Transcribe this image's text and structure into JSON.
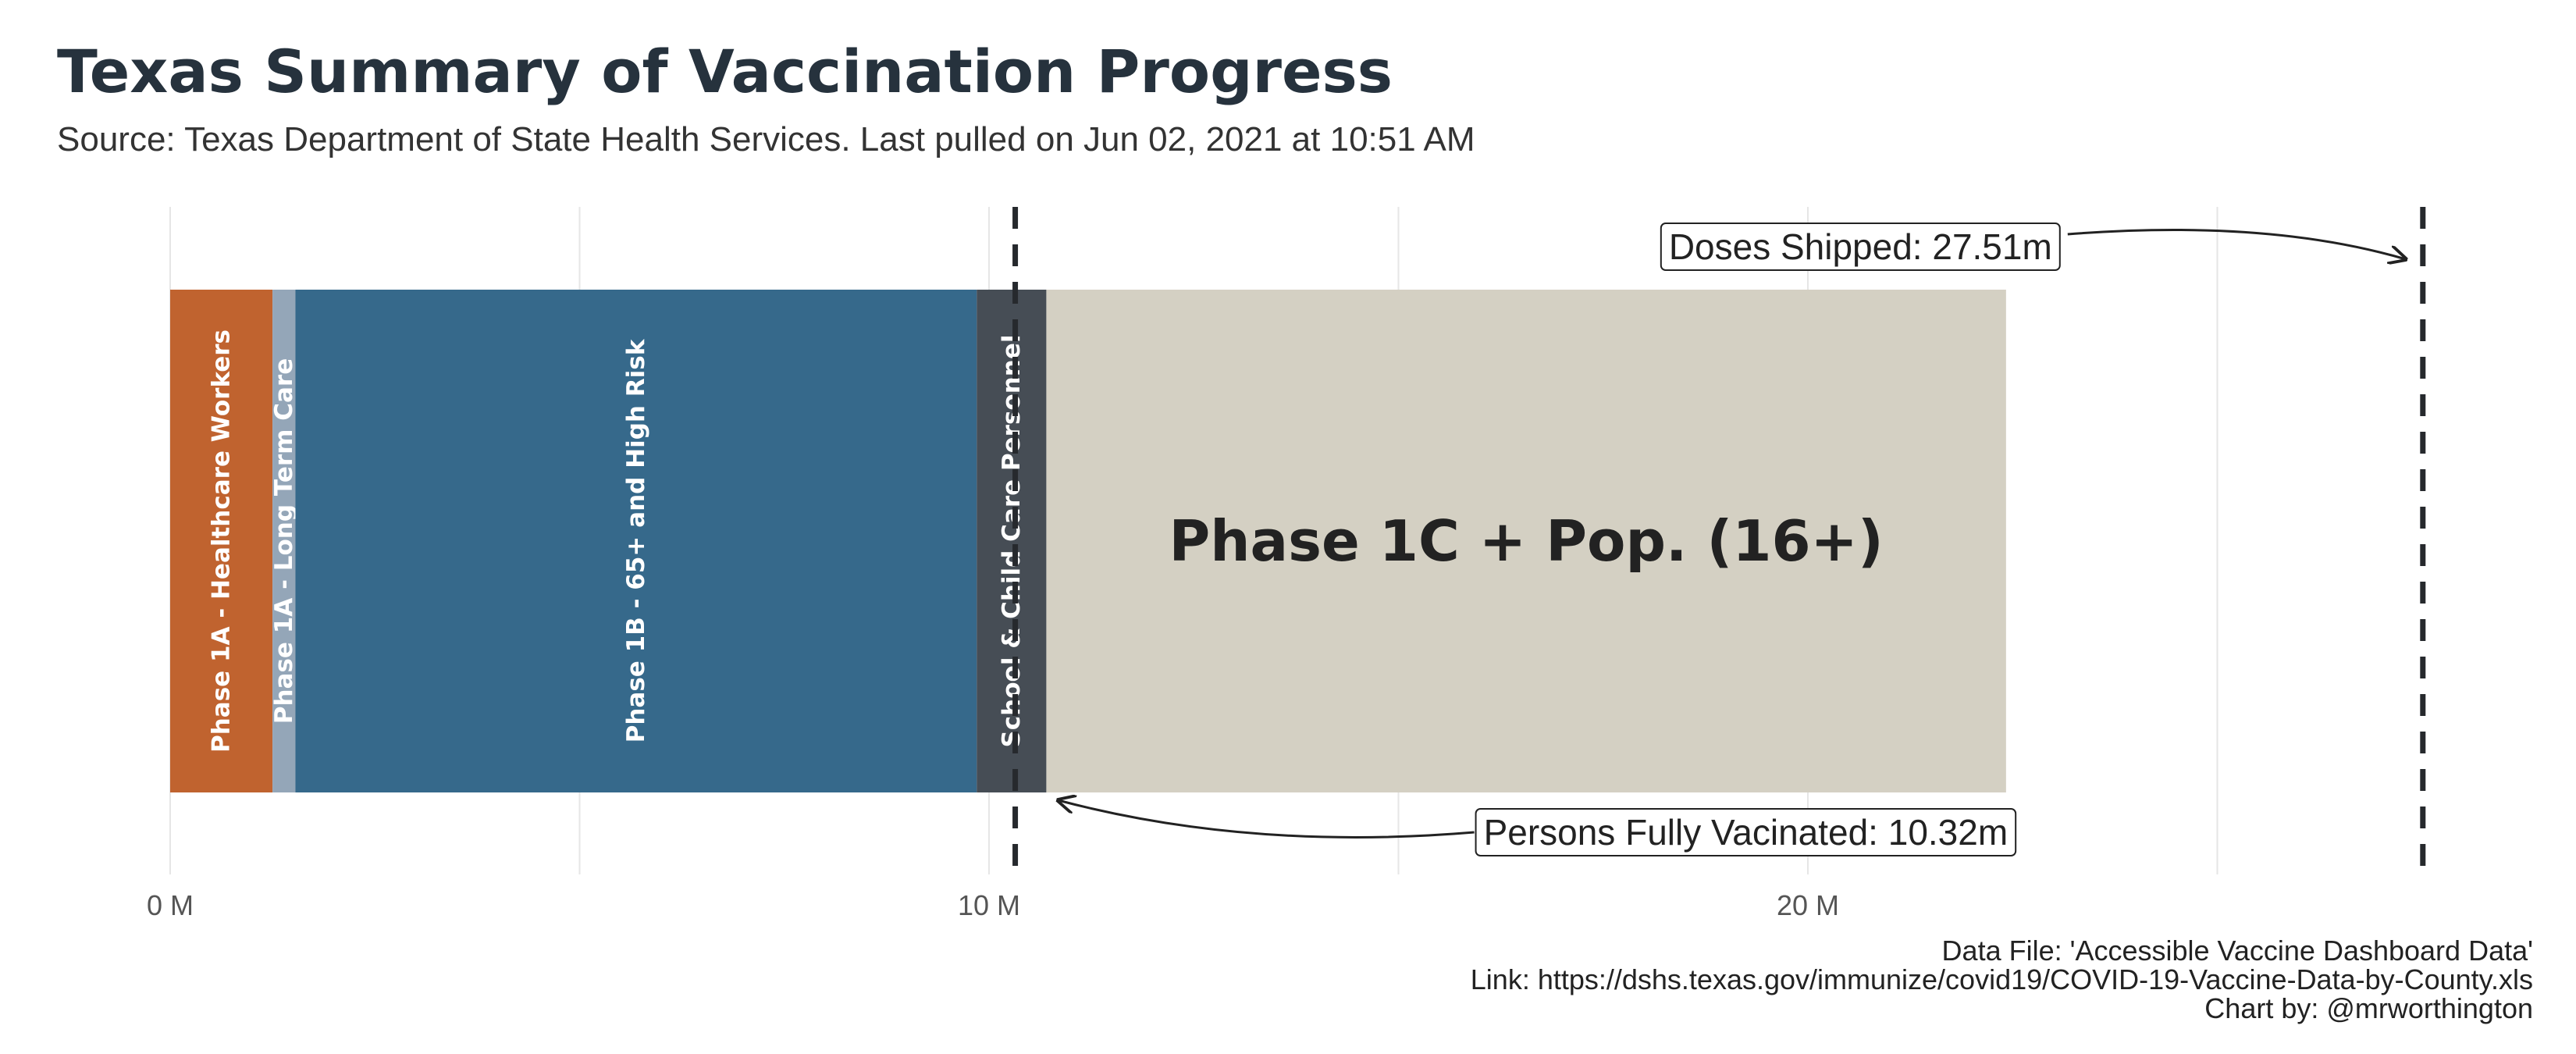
{
  "chart_data": {
    "type": "bar",
    "orientation": "horizontal-stacked",
    "title": "Texas Summary of Vaccination Progress",
    "subtitle": "Source: Texas Department of State Health Services. Last pulled on Jun 02, 2021 at 10:51 AM",
    "xlim": [
      0,
      30
    ],
    "x_unit": "M",
    "x_ticks": [
      {
        "value": 0,
        "label": "0 M"
      },
      {
        "value": 10,
        "label": "10 M"
      },
      {
        "value": 20,
        "label": "20 M"
      }
    ],
    "grid": true,
    "segments": [
      {
        "label": "Phase 1A - Healthcare Workers",
        "start": 0,
        "end": 1.25,
        "color": "#c0632f",
        "label_style": "vertical"
      },
      {
        "label": "Phase 1A - Long Term Care",
        "start": 1.25,
        "end": 1.53,
        "color": "#94a6b8",
        "label_style": "vertical"
      },
      {
        "label": "Phase 1B - 65+ and High Risk",
        "start": 1.53,
        "end": 9.85,
        "color": "#36698b",
        "label_style": "vertical"
      },
      {
        "label": "School & Child Care Personnel",
        "start": 9.85,
        "end": 10.7,
        "color": "#464d55",
        "label_style": "vertical"
      },
      {
        "label": "Phase 1C + Pop. (16+)",
        "start": 10.7,
        "end": 22.42,
        "color": "#d4d0c3",
        "label_style": "large-dark"
      }
    ],
    "reference_lines": [
      {
        "value": 10.32,
        "label": "Persons Fully Vacinated: 10.32m",
        "style": "dashed",
        "label_position": "bottom"
      },
      {
        "value": 27.51,
        "label": "Doses Shipped: 27.51m",
        "style": "dashed",
        "label_position": "top"
      }
    ],
    "caption_lines": [
      "Data File: 'Accessible Vaccine Dashboard Data'",
      "Link: https://dshs.texas.gov/immunize/covid19/COVID-19-Vaccine-Data-by-County.xls",
      "Chart by: @mrworthington"
    ]
  }
}
